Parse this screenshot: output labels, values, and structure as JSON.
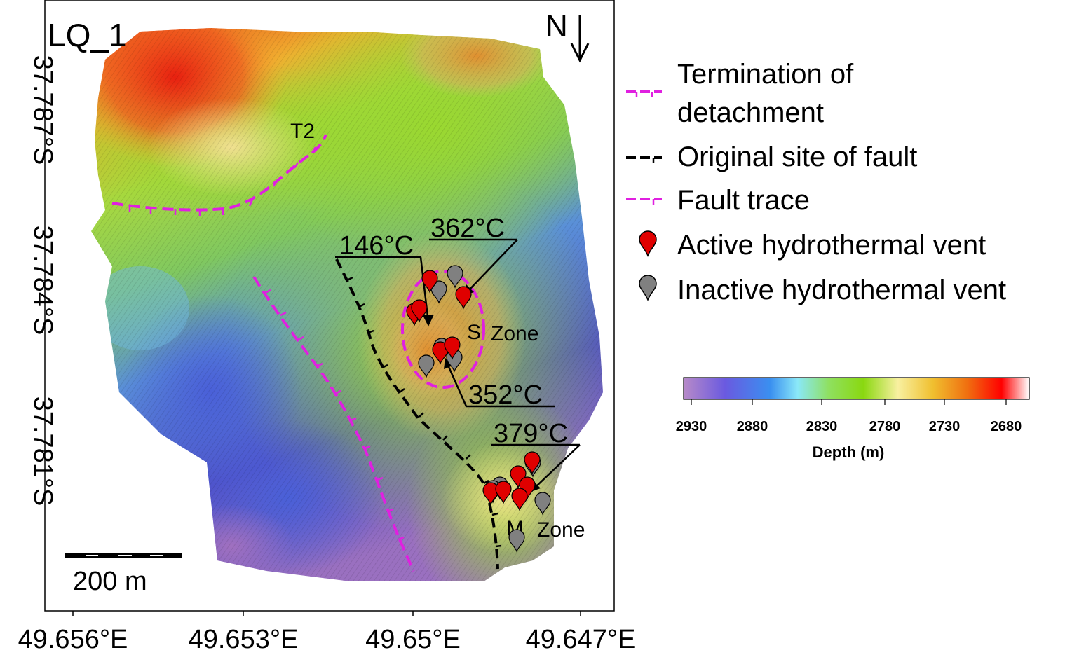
{
  "map": {
    "panel_label": "LQ_1",
    "north_label": "N",
    "scale_bar_label": "200 m",
    "lat_ticks": [
      "37.787°S",
      "37.784°S",
      "37.781°S"
    ],
    "lon_ticks": [
      "49.656°E",
      "49.653°E",
      "49.65°E",
      "49.647°E"
    ],
    "feature_labels": {
      "t2": "T2",
      "s_zone": [
        "S",
        "Zone"
      ],
      "m_zone": [
        "M",
        "Zone"
      ]
    },
    "temperatures": [
      "146°C",
      "362°C",
      "352°C",
      "379°C"
    ],
    "active_vent_count": 14,
    "inactive_vent_count": 10
  },
  "legend": {
    "items": [
      {
        "label_lines": [
          "Termination of",
          "detachment"
        ],
        "symbol": "dashed-magenta-ticks",
        "color": "#e020e0"
      },
      {
        "label_lines": [
          "Original site of fault"
        ],
        "symbol": "dashed-black-ticks",
        "color": "#000000"
      },
      {
        "label_lines": [
          "Fault trace"
        ],
        "symbol": "dashed-magenta-ticks",
        "color": "#e020e0"
      },
      {
        "label_lines": [
          "Active hydrothermal vent"
        ],
        "symbol": "marker-icon",
        "color": "#e00000"
      },
      {
        "label_lines": [
          "Inactive hydrothermal vent"
        ],
        "symbol": "marker-icon",
        "color": "#808080"
      }
    ]
  },
  "colorbar": {
    "title": "Depth (m)",
    "ticks": [
      "2930",
      "2880",
      "2830",
      "2780",
      "2730",
      "2680"
    ],
    "colors": [
      "#b78ac8",
      "#6a5ae0",
      "#3a7ff0",
      "#8ae8f8",
      "#8fe060",
      "#8ad810",
      "#f8f0a0",
      "#f0c030",
      "#f07010",
      "#ff0000",
      "#ffffff"
    ]
  }
}
